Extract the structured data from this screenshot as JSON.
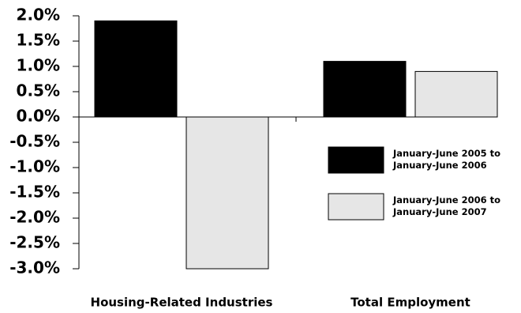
{
  "chart_data": {
    "type": "bar",
    "categories": [
      "Housing-Related Industries",
      "Total Employment"
    ],
    "series": [
      {
        "name": "January-June 2005 to January-June 2006",
        "color": "#000000",
        "values": [
          1.9,
          1.1
        ]
      },
      {
        "name": "January-June 2006 to January-June 2007",
        "color": "#e6e6e6",
        "values": [
          -3.0,
          0.9
        ]
      }
    ],
    "ylim": [
      -3.0,
      2.0
    ],
    "yticks": [
      {
        "value": 2.0,
        "label": "2.0%"
      },
      {
        "value": 1.5,
        "label": "1.5%"
      },
      {
        "value": 1.0,
        "label": "1.0%"
      },
      {
        "value": 0.5,
        "label": "0.5%"
      },
      {
        "value": 0.0,
        "label": "0.0%"
      },
      {
        "value": -0.5,
        "label": "-0.5%"
      },
      {
        "value": -1.0,
        "label": "-1.0%"
      },
      {
        "value": -1.5,
        "label": "-1.5%"
      },
      {
        "value": -2.0,
        "label": "-2.0%"
      },
      {
        "value": -2.5,
        "label": "-2.5%"
      },
      {
        "value": -3.0,
        "label": "-3.0%"
      }
    ]
  }
}
